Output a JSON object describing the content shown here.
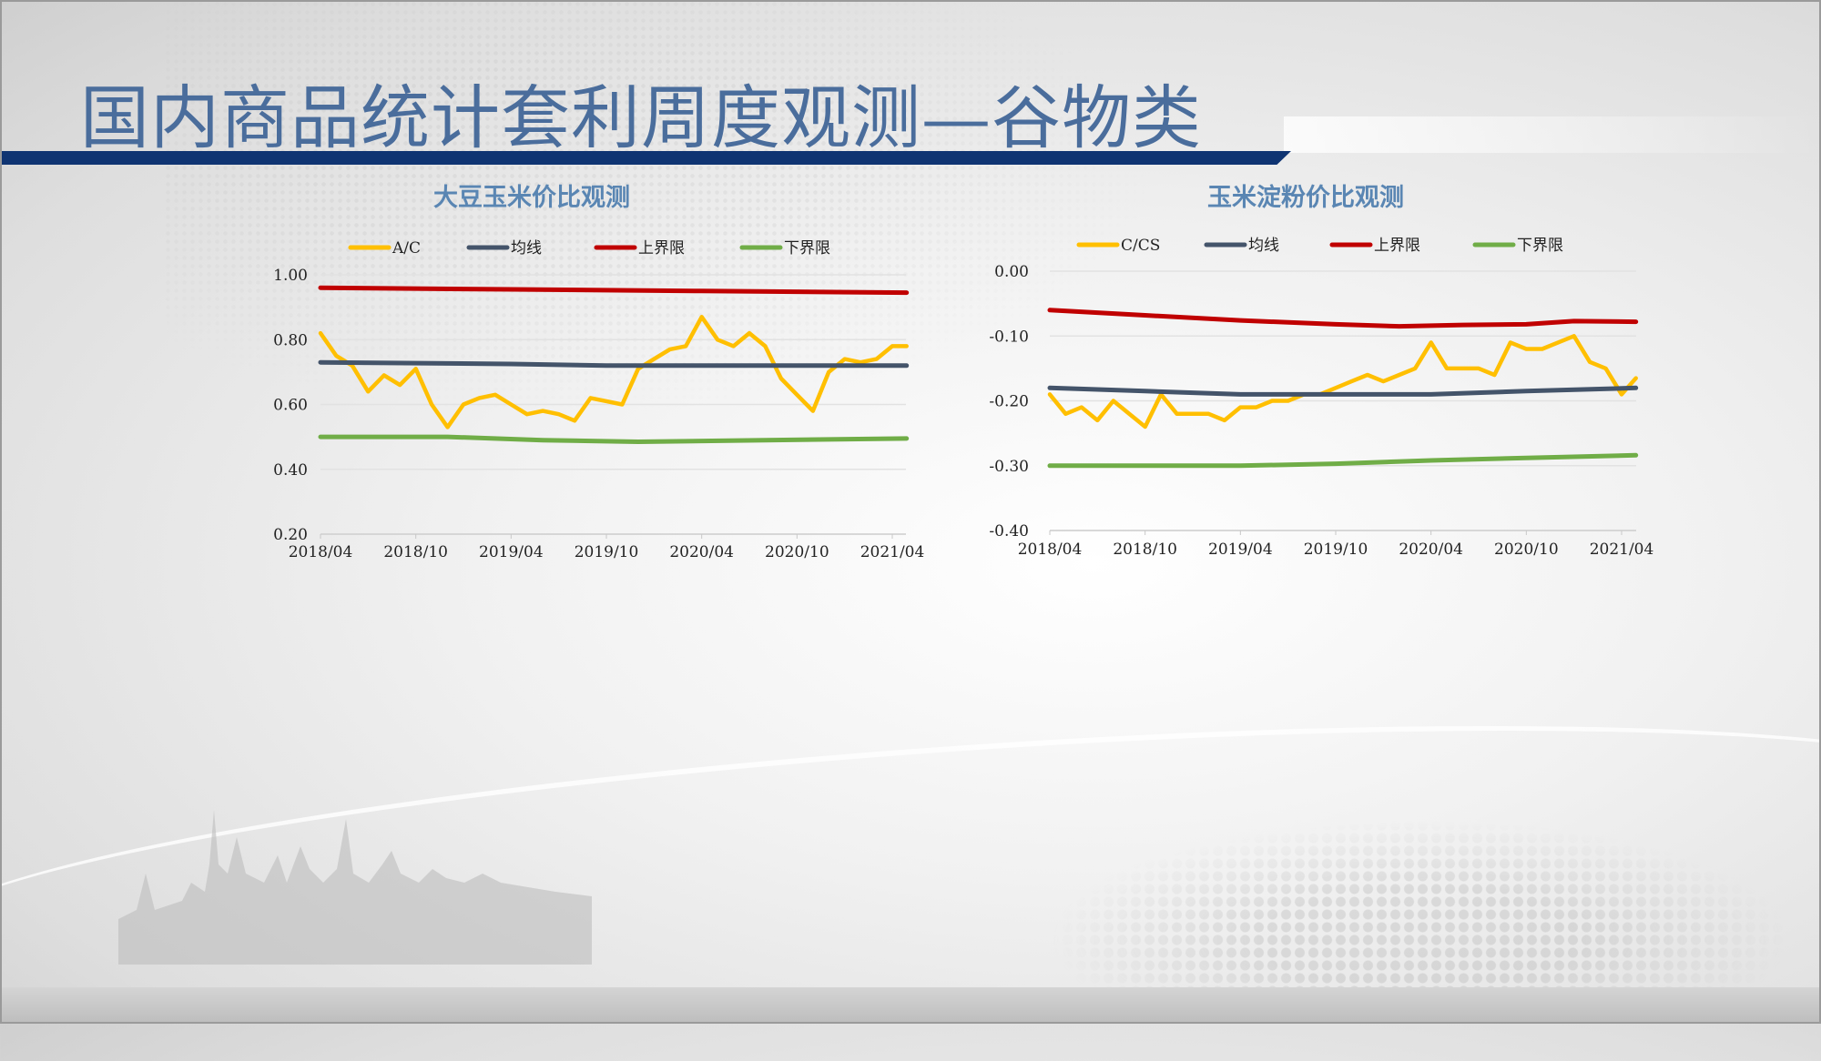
{
  "page_title": "国内商品统计套利周度观测—谷物类",
  "colors": {
    "title": "#4a6d9c",
    "bar": "#0f3472",
    "ratio": "#ffbf00",
    "mean": "#44546a",
    "upper": "#c00000",
    "lower": "#70ad47"
  },
  "chart_data": [
    {
      "type": "line",
      "title": "大豆玉米价比观测",
      "xlabel": "",
      "ylabel": "",
      "x_unit": "months since 2018/04",
      "xlim": [
        0,
        36.9
      ],
      "ylim": [
        0.2,
        1.0
      ],
      "yticks": [
        "0.20",
        "0.40",
        "0.60",
        "0.80",
        "1.00"
      ],
      "ytick_values": [
        0.2,
        0.4,
        0.6,
        0.8,
        1.0
      ],
      "xticks": [
        "2018/04",
        "2018/10",
        "2019/04",
        "2019/10",
        "2020/04",
        "2020/10",
        "2021/04"
      ],
      "xtick_values": [
        0,
        6,
        12,
        18,
        24,
        30,
        36
      ],
      "legend_position": "top",
      "grid": true,
      "series": [
        {
          "name": "A/C",
          "color_key": "ratio",
          "x": [
            0,
            1,
            2,
            3,
            4,
            5,
            6,
            7,
            8,
            9,
            10,
            11,
            12,
            13,
            14,
            15,
            16,
            17,
            18,
            19,
            20,
            21,
            22,
            23,
            24,
            25,
            26,
            27,
            28,
            29,
            30,
            31,
            32,
            33,
            34,
            35,
            36,
            36.9
          ],
          "y": [
            0.82,
            0.75,
            0.72,
            0.64,
            0.69,
            0.66,
            0.71,
            0.6,
            0.53,
            0.6,
            0.62,
            0.63,
            0.6,
            0.57,
            0.58,
            0.57,
            0.55,
            0.62,
            0.61,
            0.6,
            0.71,
            0.74,
            0.77,
            0.78,
            0.87,
            0.8,
            0.78,
            0.82,
            0.78,
            0.68,
            0.63,
            0.58,
            0.7,
            0.74,
            0.73,
            0.74,
            0.78,
            0.78
          ]
        },
        {
          "name": "均线",
          "color_key": "mean",
          "x": [
            0,
            12,
            18,
            24,
            30,
            36.9
          ],
          "y": [
            0.73,
            0.725,
            0.72,
            0.72,
            0.72,
            0.72
          ]
        },
        {
          "name": "上界限",
          "color_key": "upper",
          "x": [
            0,
            12,
            24,
            36.9
          ],
          "y": [
            0.96,
            0.955,
            0.95,
            0.945
          ]
        },
        {
          "name": "下界限",
          "color_key": "lower",
          "x": [
            0,
            8,
            14,
            20,
            28,
            36.9
          ],
          "y": [
            0.5,
            0.5,
            0.49,
            0.485,
            0.49,
            0.495
          ]
        }
      ]
    },
    {
      "type": "line",
      "title": "玉米淀粉价比观测",
      "xlabel": "",
      "ylabel": "",
      "x_unit": "months since 2018/04",
      "xlim": [
        0,
        36.9
      ],
      "ylim": [
        -0.4,
        0.0
      ],
      "yticks": [
        "-0.40",
        "-0.30",
        "-0.20",
        "-0.10",
        "0.00"
      ],
      "ytick_values": [
        -0.4,
        -0.3,
        -0.2,
        -0.1,
        0.0
      ],
      "xticks": [
        "2018/04",
        "2018/10",
        "2019/04",
        "2019/10",
        "2020/04",
        "2020/10",
        "2021/04"
      ],
      "xtick_values": [
        0,
        6,
        12,
        18,
        24,
        30,
        36
      ],
      "legend_position": "top",
      "grid": true,
      "series": [
        {
          "name": "C/CS",
          "color_key": "ratio",
          "x": [
            0,
            1,
            2,
            3,
            4,
            5,
            6,
            7,
            8,
            9,
            10,
            11,
            12,
            13,
            14,
            15,
            16,
            17,
            18,
            19,
            20,
            21,
            22,
            23,
            24,
            25,
            26,
            27,
            28,
            29,
            30,
            31,
            32,
            33,
            34,
            35,
            36,
            36.9
          ],
          "y": [
            -0.19,
            -0.22,
            -0.21,
            -0.23,
            -0.2,
            -0.22,
            -0.24,
            -0.19,
            -0.22,
            -0.22,
            -0.22,
            -0.23,
            -0.21,
            -0.21,
            -0.2,
            -0.2,
            -0.19,
            -0.19,
            -0.18,
            -0.17,
            -0.16,
            -0.17,
            -0.16,
            -0.15,
            -0.11,
            -0.15,
            -0.15,
            -0.15,
            -0.16,
            -0.11,
            -0.12,
            -0.12,
            -0.11,
            -0.1,
            -0.14,
            -0.15,
            -0.19,
            -0.165
          ]
        },
        {
          "name": "均线",
          "color_key": "mean",
          "x": [
            0,
            6,
            12,
            18,
            24,
            30,
            36.9
          ],
          "y": [
            -0.18,
            -0.185,
            -0.19,
            -0.19,
            -0.19,
            -0.185,
            -0.18
          ]
        },
        {
          "name": "上界限",
          "color_key": "upper",
          "x": [
            0,
            6,
            12,
            18,
            22,
            26,
            30,
            33,
            36.9
          ],
          "y": [
            -0.06,
            -0.068,
            -0.076,
            -0.082,
            -0.085,
            -0.083,
            -0.082,
            -0.077,
            -0.078
          ]
        },
        {
          "name": "下界限",
          "color_key": "lower",
          "x": [
            0,
            12,
            18,
            24,
            30,
            36.9
          ],
          "y": [
            -0.3,
            -0.3,
            -0.297,
            -0.292,
            -0.288,
            -0.284
          ]
        }
      ]
    }
  ]
}
